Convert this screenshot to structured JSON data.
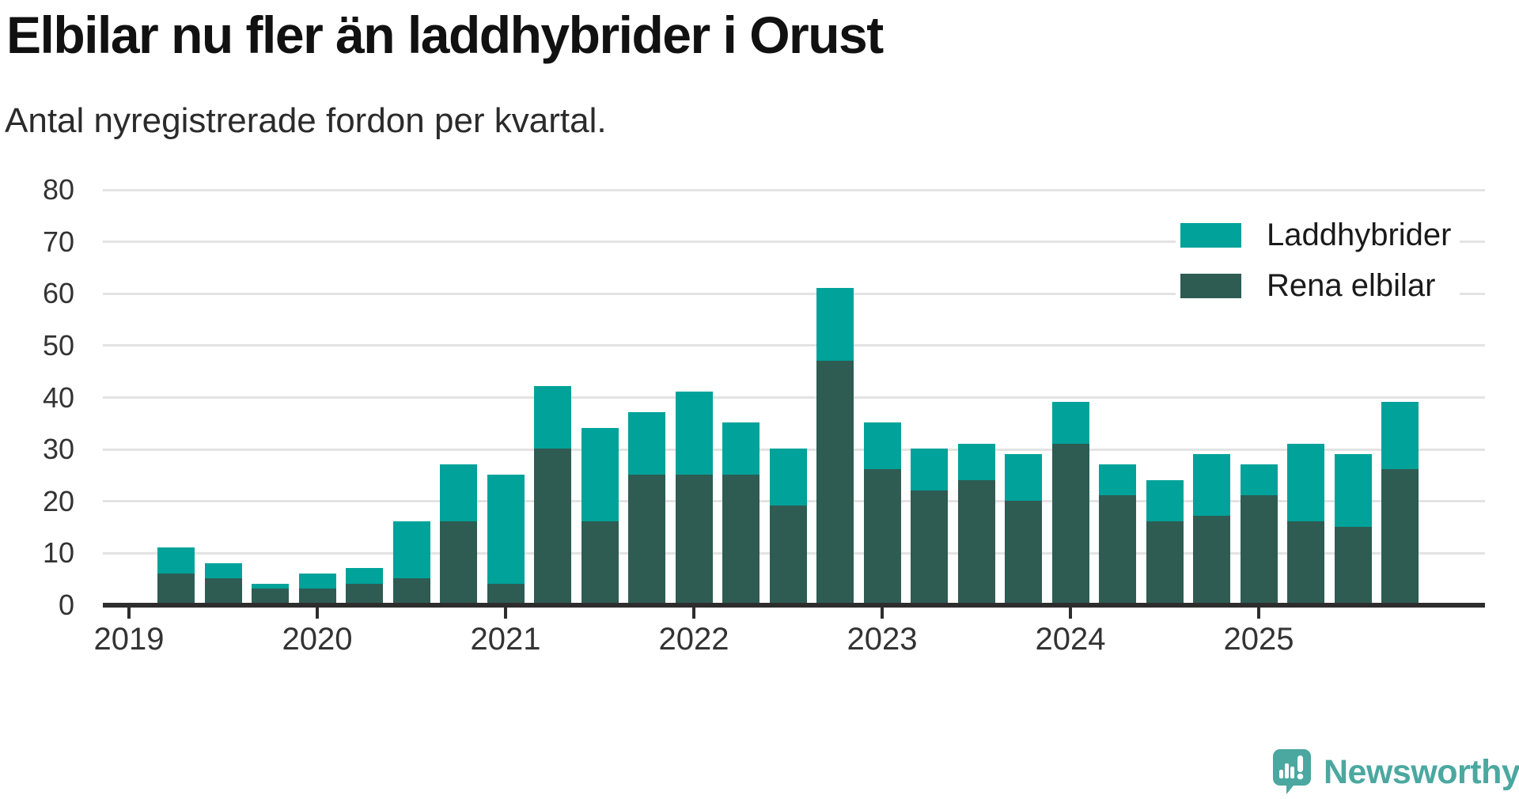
{
  "title": "Elbilar nu fler än laddhybrider i Orust",
  "subtitle": "Antal nyregistrerade fordon per kvartal.",
  "legend": {
    "items": [
      {
        "label": "Laddhybrider",
        "color": "#00a29a"
      },
      {
        "label": "Rena elbilar",
        "color": "#2e5c52"
      }
    ]
  },
  "branding": {
    "logo_text": "Newsworthy",
    "logo_color": "#4ba8a0"
  },
  "colors": {
    "laddhybrider": "#00a29a",
    "rena_elbilar": "#2e5c52",
    "gridline": "#e3e3e3",
    "axis": "#2d2d2d",
    "tick_label": "#333333"
  },
  "chart_data": {
    "type": "bar",
    "stacked": true,
    "title": "Elbilar nu fler än laddhybrider i Orust",
    "subtitle": "Antal nyregistrerade fordon per kvartal.",
    "xlabel": "",
    "ylabel": "",
    "x": [
      "2019K2",
      "2019K3",
      "2019K4",
      "2020K1",
      "2020K2",
      "2020K3",
      "2020K4",
      "2021K1",
      "2021K2",
      "2021K3",
      "2021K4",
      "2022K1",
      "2022K2",
      "2022K3",
      "2022K4",
      "2023K1",
      "2023K2",
      "2023K3",
      "2023K4",
      "2024K1",
      "2024K2",
      "2024K3",
      "2024K4",
      "2025K1",
      "2025K2",
      "2025K3",
      "2025K4"
    ],
    "series": [
      {
        "name": "Rena elbilar",
        "color": "#2e5c52",
        "stack_order": "bottom",
        "values": [
          6,
          5,
          3,
          3,
          4,
          5,
          16,
          4,
          30,
          16,
          25,
          25,
          25,
          19,
          47,
          26,
          22,
          24,
          20,
          31,
          21,
          16,
          17,
          21,
          16,
          15,
          26
        ]
      },
      {
        "name": "Laddhybrider",
        "color": "#00a29a",
        "stack_order": "top",
        "values": [
          5,
          3,
          1,
          3,
          3,
          11,
          11,
          21,
          12,
          18,
          12,
          16,
          10,
          11,
          14,
          9,
          8,
          7,
          9,
          8,
          6,
          8,
          12,
          6,
          15,
          14,
          13
        ]
      }
    ],
    "totals": [
      11,
      8,
      4,
      6,
      7,
      16,
      27,
      25,
      42,
      34,
      37,
      41,
      35,
      30,
      61,
      35,
      30,
      31,
      29,
      39,
      27,
      24,
      29,
      27,
      31,
      29,
      39
    ],
    "year_ticks": [
      "2019",
      "2020",
      "2021",
      "2022",
      "2023",
      "2024",
      "2025"
    ],
    "yticks": [
      0,
      10,
      20,
      30,
      40,
      50,
      60,
      70,
      80
    ],
    "ylim": [
      0,
      80
    ],
    "grid": "horizontal",
    "legend_position": "top-right"
  }
}
